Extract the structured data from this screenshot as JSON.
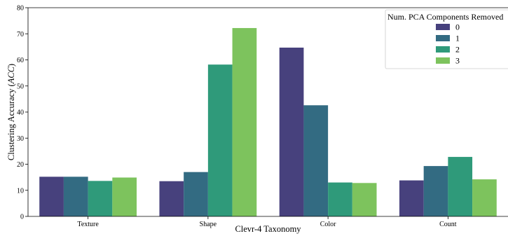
{
  "chart_data": {
    "type": "bar",
    "title": "",
    "xlabel": "Clevr-4 Taxonomy",
    "ylabel": "Clustering Accuracy (ACC)",
    "ylabel_parts": {
      "prefix": "Clustering Accuracy (",
      "italic": "ACC",
      "suffix": ")"
    },
    "ylim": [
      0,
      80
    ],
    "yticks": [
      0,
      10,
      20,
      30,
      40,
      50,
      60,
      70,
      80
    ],
    "categories": [
      "Texture",
      "Shape",
      "Color",
      "Count"
    ],
    "legend": {
      "title": "Num. PCA Components Removed",
      "placement": "top-right"
    },
    "grid": false,
    "series": [
      {
        "name": "0",
        "color": "#47417d",
        "values": [
          15.2,
          13.5,
          64.7,
          13.8
        ]
      },
      {
        "name": "1",
        "color": "#336b82",
        "values": [
          15.2,
          17.0,
          42.6,
          19.3
        ]
      },
      {
        "name": "2",
        "color": "#2f9a7a",
        "values": [
          13.6,
          58.2,
          13.0,
          22.8
        ]
      },
      {
        "name": "3",
        "color": "#7dc35d",
        "values": [
          14.9,
          72.2,
          12.8,
          14.2
        ]
      }
    ]
  }
}
